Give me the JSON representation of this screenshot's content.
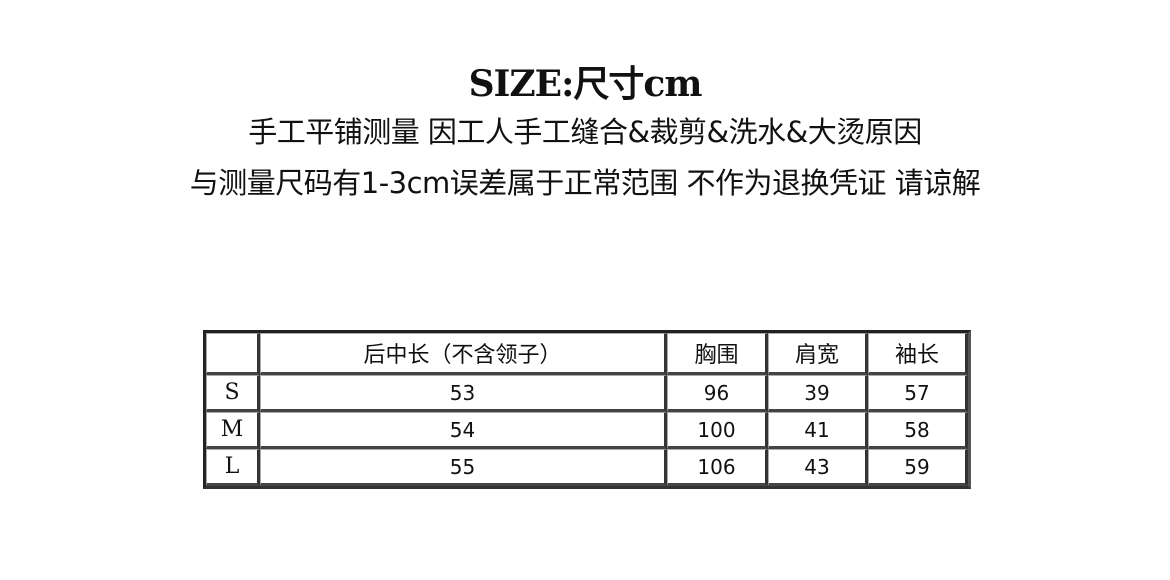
{
  "title": "SIZE:尺寸cm",
  "notes": [
    "手工平铺测量 因工人手工缝合&裁剪&洗水&大烫原因",
    "与测量尺码有1-3cm误差属于正常范围 不作为退换凭证 请谅解"
  ],
  "table": {
    "headers": [
      "",
      "后中长（不含领子）",
      "胸围",
      "肩宽",
      "袖长"
    ],
    "rows": [
      [
        "S",
        "53",
        "96",
        "39",
        "57"
      ],
      [
        "M",
        "54",
        "100",
        "41",
        "58"
      ],
      [
        "L",
        "55",
        "106",
        "43",
        "59"
      ]
    ]
  }
}
